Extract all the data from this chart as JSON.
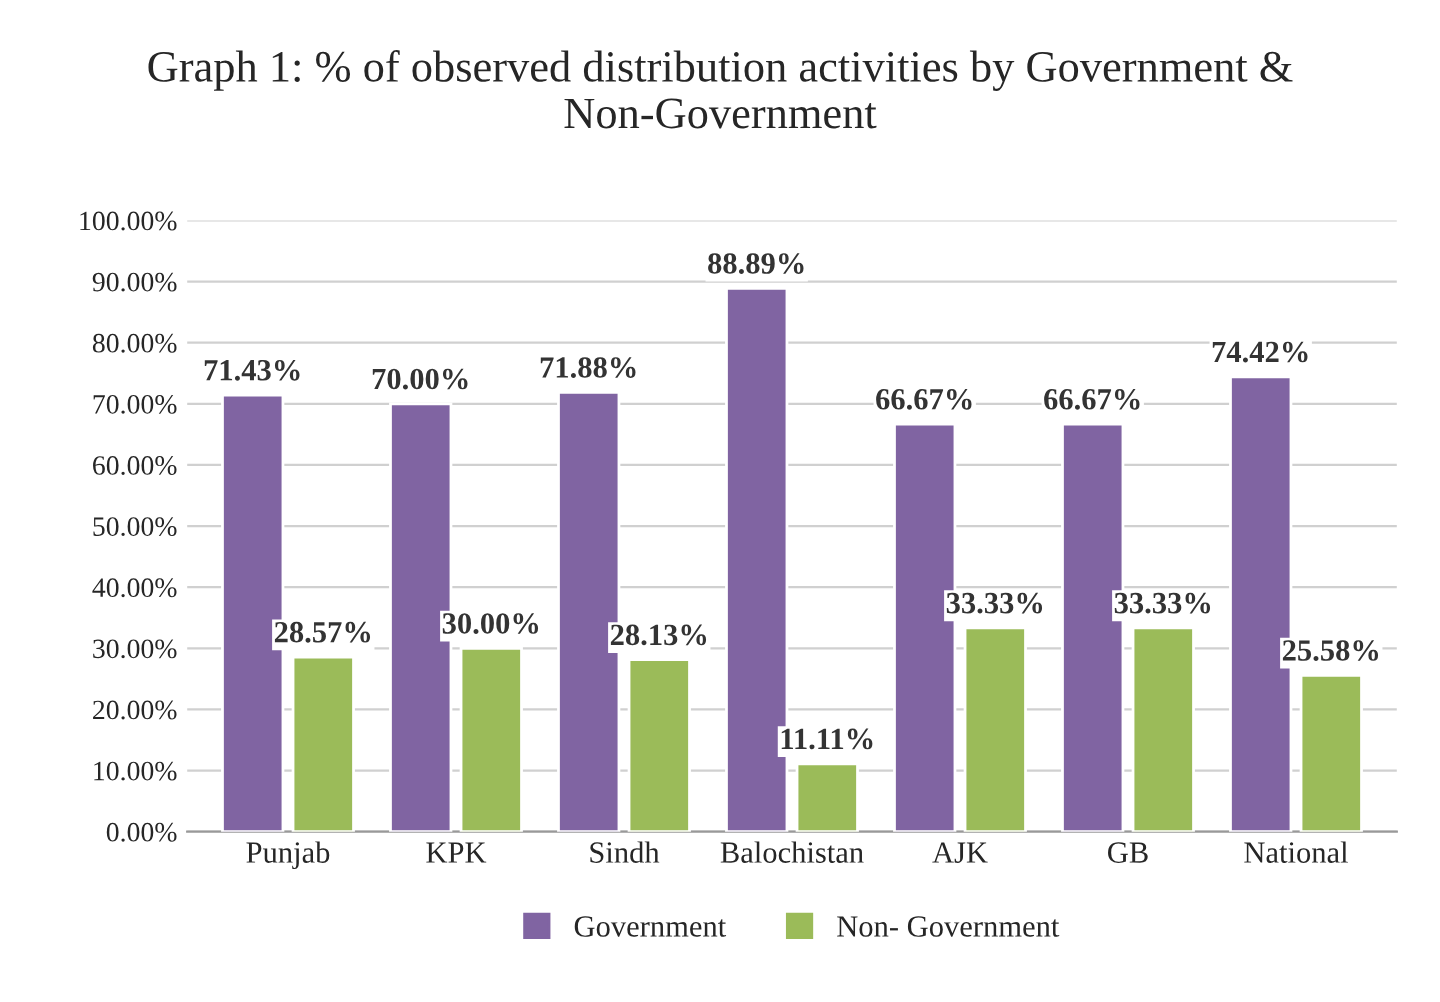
{
  "chart_data": {
    "type": "bar",
    "title": "Graph 1: % of observed distribution activities by Government & Non-Government",
    "categories": [
      "Punjab",
      "KPK",
      "Sindh",
      "Balochistan",
      "AJK",
      "GB",
      "National"
    ],
    "series": [
      {
        "name": "Government",
        "color": "#8064a2",
        "values": [
          71.43,
          70.0,
          71.88,
          88.89,
          66.67,
          66.67,
          74.42
        ],
        "value_labels": [
          "71.43%",
          "70.00%",
          "71.88%",
          "88.89%",
          "66.67%",
          "66.67%",
          "74.42%"
        ]
      },
      {
        "name": "Non- Government",
        "color": "#9bbb59",
        "values": [
          28.57,
          30.0,
          28.13,
          11.11,
          33.33,
          33.33,
          25.58
        ],
        "value_labels": [
          "28.57%",
          "30.00%",
          "28.13%",
          "11.11%",
          "33.33%",
          "33.33%",
          "25.58%"
        ]
      }
    ],
    "ylim": [
      0,
      100
    ],
    "yticks": [
      {
        "value": 0,
        "label": "0.00%"
      },
      {
        "value": 10,
        "label": "10.00%"
      },
      {
        "value": 20,
        "label": "20.00%"
      },
      {
        "value": 30,
        "label": "30.00%"
      },
      {
        "value": 40,
        "label": "40.00%"
      },
      {
        "value": 50,
        "label": "50.00%"
      },
      {
        "value": 60,
        "label": "60.00%"
      },
      {
        "value": 70,
        "label": "70.00%"
      },
      {
        "value": 80,
        "label": "80.00%"
      },
      {
        "value": 90,
        "label": "90.00%"
      },
      {
        "value": 100,
        "label": "100.00%"
      }
    ],
    "grid": "y",
    "legend": "bottom"
  }
}
